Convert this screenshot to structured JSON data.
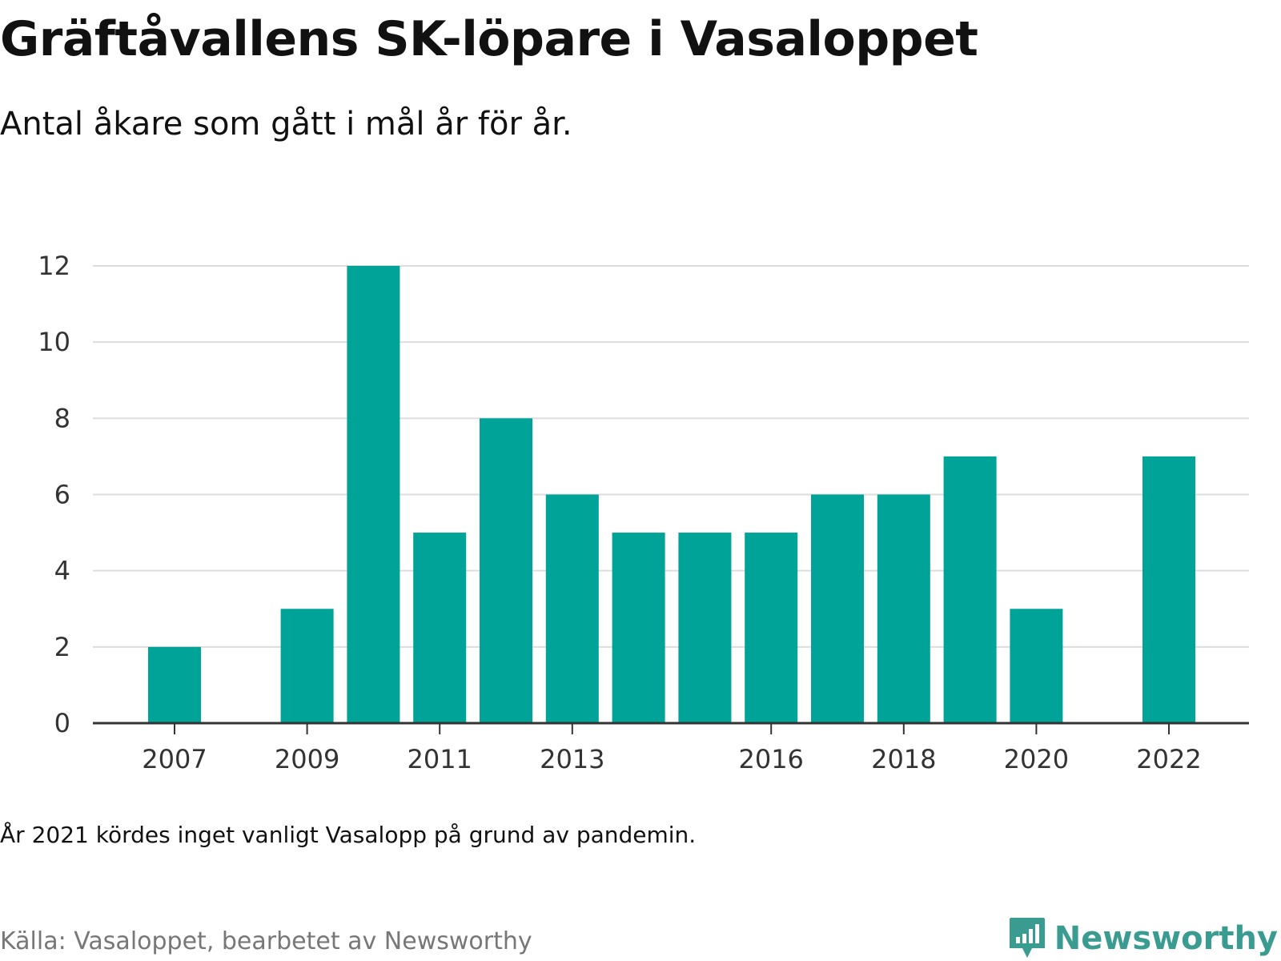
{
  "title": "Gräftåvallens SK-löpare i Vasaloppet",
  "subtitle": "Antal åkare som gått i mål år för år.",
  "note": "År 2021 kördes inget vanligt Vasalopp på grund av pandemin.",
  "source": "Källa: Vasaloppet, bearbetet av Newsworthy",
  "brand": {
    "name": "Newsworthy",
    "icon": "newsworthy-logo-icon",
    "color": "#3a9c91"
  },
  "colors": {
    "bar": "#00a398",
    "grid": "#dddddd",
    "axis": "#333333"
  },
  "chart_data": {
    "type": "bar",
    "title": "",
    "xlabel": "",
    "ylabel": "",
    "x": [
      2007,
      2008,
      2009,
      2010,
      2011,
      2012,
      2013,
      2014,
      2015,
      2016,
      2017,
      2018,
      2019,
      2020,
      2021,
      2022
    ],
    "values": [
      2,
      0,
      3,
      12,
      5,
      8,
      6,
      5,
      5,
      5,
      6,
      6,
      7,
      3,
      null,
      7
    ],
    "x_ticks": [
      2007,
      2009,
      2011,
      2013,
      2016,
      2018,
      2020,
      2022
    ],
    "y_ticks": [
      0,
      2,
      4,
      6,
      8,
      10,
      12
    ],
    "ylim": [
      0,
      12
    ],
    "grid": true,
    "legend": "none"
  }
}
